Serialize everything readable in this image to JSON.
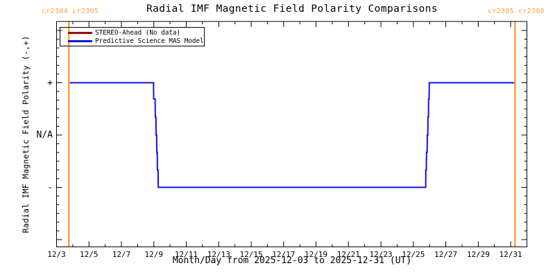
{
  "title": "Radial IMF Magnetic Field Polarity Comparisons",
  "annotations": {
    "top_left_rotations": "cr2304 cr2305",
    "top_right_rotations": "cr2305 cr2306"
  },
  "legend": {
    "entries": [
      {
        "label": "STEREO-Ahead (No data)",
        "color": "#AA0000"
      },
      {
        "label": "Predictive Science MAS Model",
        "color": "#1111DD"
      }
    ]
  },
  "colors": {
    "background": "#FFFFFF",
    "axis": "#000000",
    "carrington_boundary": "#FFA040",
    "stereo_ahead": "#AA0000",
    "mas_model": "#1111DD"
  },
  "chart_data": {
    "type": "line",
    "title": "Radial IMF Magnetic Field Polarity Comparisons",
    "xlabel": "Month/Day from 2025-12-03 to 2025-12-31 (UT)",
    "ylabel": "Radial IMF Magnetic Field Polarity (-,+)",
    "x_unit": "days since 2025-12-03 00:00 UT",
    "xlim_days": [
      0,
      29
    ],
    "ylim_levels": [
      -2.15,
      2.17
    ],
    "grid": false,
    "legend_position": "top-left-inside",
    "x_major_ticks": [
      {
        "day": 0,
        "label": "12/3"
      },
      {
        "day": 2,
        "label": "12/5"
      },
      {
        "day": 4,
        "label": "12/7"
      },
      {
        "day": 6,
        "label": "12/9"
      },
      {
        "day": 8,
        "label": "12/11"
      },
      {
        "day": 10,
        "label": "12/13"
      },
      {
        "day": 12,
        "label": "12/15"
      },
      {
        "day": 14,
        "label": "12/17"
      },
      {
        "day": 16,
        "label": "12/19"
      },
      {
        "day": 18,
        "label": "12/21"
      },
      {
        "day": 20,
        "label": "12/23"
      },
      {
        "day": 22,
        "label": "12/25"
      },
      {
        "day": 24,
        "label": "12/27"
      },
      {
        "day": 26,
        "label": "12/29"
      },
      {
        "day": 28,
        "label": "12/31"
      }
    ],
    "x_minor_tick_every_days": 1,
    "y_major_tick_levels": [
      2,
      1,
      0,
      -1,
      -2
    ],
    "y_tick_labels": [
      {
        "level": 1,
        "label": "+"
      },
      {
        "level": 0,
        "label": "N/A"
      },
      {
        "level": -1,
        "label": "-"
      }
    ],
    "y_minor_ticks_per_major_interval": 6,
    "carrington_boundaries_days": [
      0.76,
      28.27
    ],
    "series": [
      {
        "name": "STEREO-Ahead (No data)",
        "color": "#AA0000",
        "points_day_level": []
      },
      {
        "name": "Predictive Science MAS Model",
        "color": "#1111DD",
        "points_day_level": [
          [
            0.76,
            1
          ],
          [
            5.98,
            1
          ],
          [
            5.99,
            0.69
          ],
          [
            6.08,
            0.69
          ],
          [
            6.09,
            0.34
          ],
          [
            6.13,
            0.34
          ],
          [
            6.14,
            0
          ],
          [
            6.17,
            0
          ],
          [
            6.18,
            -0.33
          ],
          [
            6.21,
            -0.33
          ],
          [
            6.22,
            -0.67
          ],
          [
            6.26,
            -0.67
          ],
          [
            6.27,
            -1
          ],
          [
            22.76,
            -1
          ],
          [
            22.77,
            -0.67
          ],
          [
            22.8,
            -0.67
          ],
          [
            22.81,
            -0.33
          ],
          [
            22.85,
            -0.33
          ],
          [
            22.86,
            0
          ],
          [
            22.89,
            0
          ],
          [
            22.9,
            0.34
          ],
          [
            22.93,
            0.34
          ],
          [
            22.94,
            0.69
          ],
          [
            22.97,
            0.69
          ],
          [
            22.98,
            1
          ],
          [
            28.27,
            1
          ]
        ]
      }
    ]
  }
}
